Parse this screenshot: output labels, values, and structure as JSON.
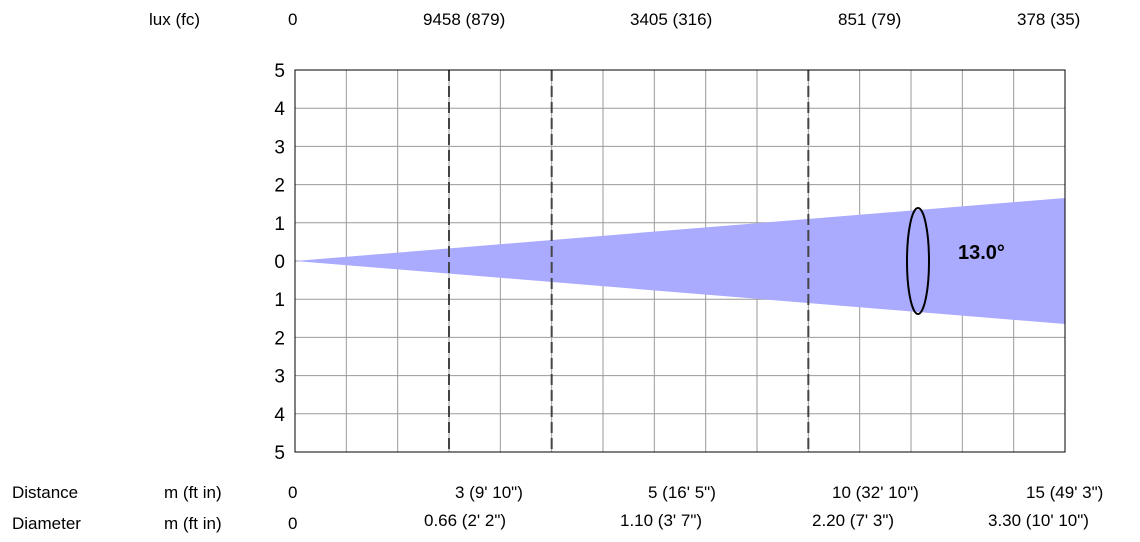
{
  "header": {
    "lux_label": "lux (fc)",
    "lux_values": [
      "0",
      "9458 (879)",
      "3405 (316)",
      "851 (79)",
      "378 (35)"
    ]
  },
  "footer": {
    "distance_label": "Distance",
    "distance_unit": "m (ft in)",
    "distance_values": [
      "0",
      "3 (9' 10\")",
      "5 (16' 5\")",
      "10 (32' 10\")",
      "15 (49' 3\")"
    ],
    "diameter_label": "Diameter",
    "diameter_unit": "m (ft in)",
    "diameter_values": [
      "0",
      "0.66 (2' 2\")",
      "1.10 (3' 7\")",
      "2.20 (7' 3\")",
      "3.30 (10' 10\")"
    ]
  },
  "beam": {
    "angle_label": "13.0°",
    "fill_color": "#aaaaff"
  },
  "chart_data": {
    "type": "area",
    "title": "",
    "xlabel": "Distance m (ft in)",
    "ylabel": "",
    "xlim": [
      0,
      15
    ],
    "ylim": [
      -5,
      5
    ],
    "beam_angle_deg": 13.0,
    "y_tick_labels": [
      "5",
      "4",
      "3",
      "2",
      "1",
      "0",
      "1",
      "2",
      "3",
      "4",
      "5"
    ],
    "marked_distances_m": [
      3,
      5,
      10,
      15
    ],
    "lux": [
      9458,
      3405,
      851,
      378
    ],
    "fc": [
      879,
      316,
      79,
      35
    ],
    "diameter_m": [
      0.66,
      1.1,
      2.2,
      3.3
    ],
    "beam_half_width_at_15m": 1.65,
    "grid": true
  }
}
